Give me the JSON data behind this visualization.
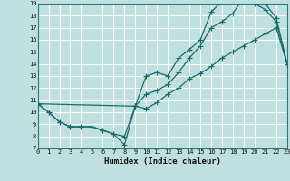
{
  "xlabel": "Humidex (Indice chaleur)",
  "bg_color": "#c0e0e0",
  "grid_color": "#ffffff",
  "line_color": "#1a6b6b",
  "xlim": [
    0,
    23
  ],
  "ylim": [
    7,
    19
  ],
  "xticks": [
    0,
    1,
    2,
    3,
    4,
    5,
    6,
    7,
    8,
    9,
    10,
    11,
    12,
    13,
    14,
    15,
    16,
    17,
    18,
    19,
    20,
    21,
    22,
    23
  ],
  "yticks": [
    7,
    8,
    9,
    10,
    11,
    12,
    13,
    14,
    15,
    16,
    17,
    18,
    19
  ],
  "line1_x": [
    0,
    1,
    2,
    3,
    4,
    5,
    6,
    7,
    8,
    9,
    10,
    11,
    12,
    13,
    14,
    15,
    16,
    17,
    18,
    19,
    20,
    21,
    22,
    23
  ],
  "line1_y": [
    10.7,
    10.0,
    9.2,
    8.8,
    8.8,
    8.8,
    8.5,
    8.2,
    7.3,
    10.5,
    10.3,
    10.8,
    11.5,
    12.0,
    12.8,
    13.2,
    13.8,
    14.5,
    15.0,
    15.5,
    16.0,
    16.5,
    17.0,
    14.0
  ],
  "line2_x": [
    0,
    1,
    2,
    3,
    4,
    5,
    6,
    7,
    8,
    9,
    10,
    11,
    12,
    13,
    14,
    15,
    16,
    17,
    18,
    19,
    20,
    21,
    22,
    23
  ],
  "line2_y": [
    10.7,
    10.0,
    9.2,
    8.8,
    8.8,
    8.8,
    8.5,
    8.2,
    8.0,
    10.5,
    13.0,
    13.3,
    13.0,
    14.5,
    15.2,
    16.0,
    18.3,
    19.2,
    19.2,
    19.3,
    19.0,
    18.5,
    17.5,
    14.0
  ],
  "line3_x": [
    0,
    9,
    10,
    11,
    12,
    13,
    14,
    15,
    16,
    17,
    18,
    19,
    20,
    21,
    22,
    23
  ],
  "line3_y": [
    10.7,
    10.5,
    11.5,
    11.8,
    12.3,
    13.3,
    14.5,
    15.5,
    17.0,
    17.5,
    18.2,
    19.5,
    19.5,
    19.0,
    17.8,
    14.0
  ]
}
